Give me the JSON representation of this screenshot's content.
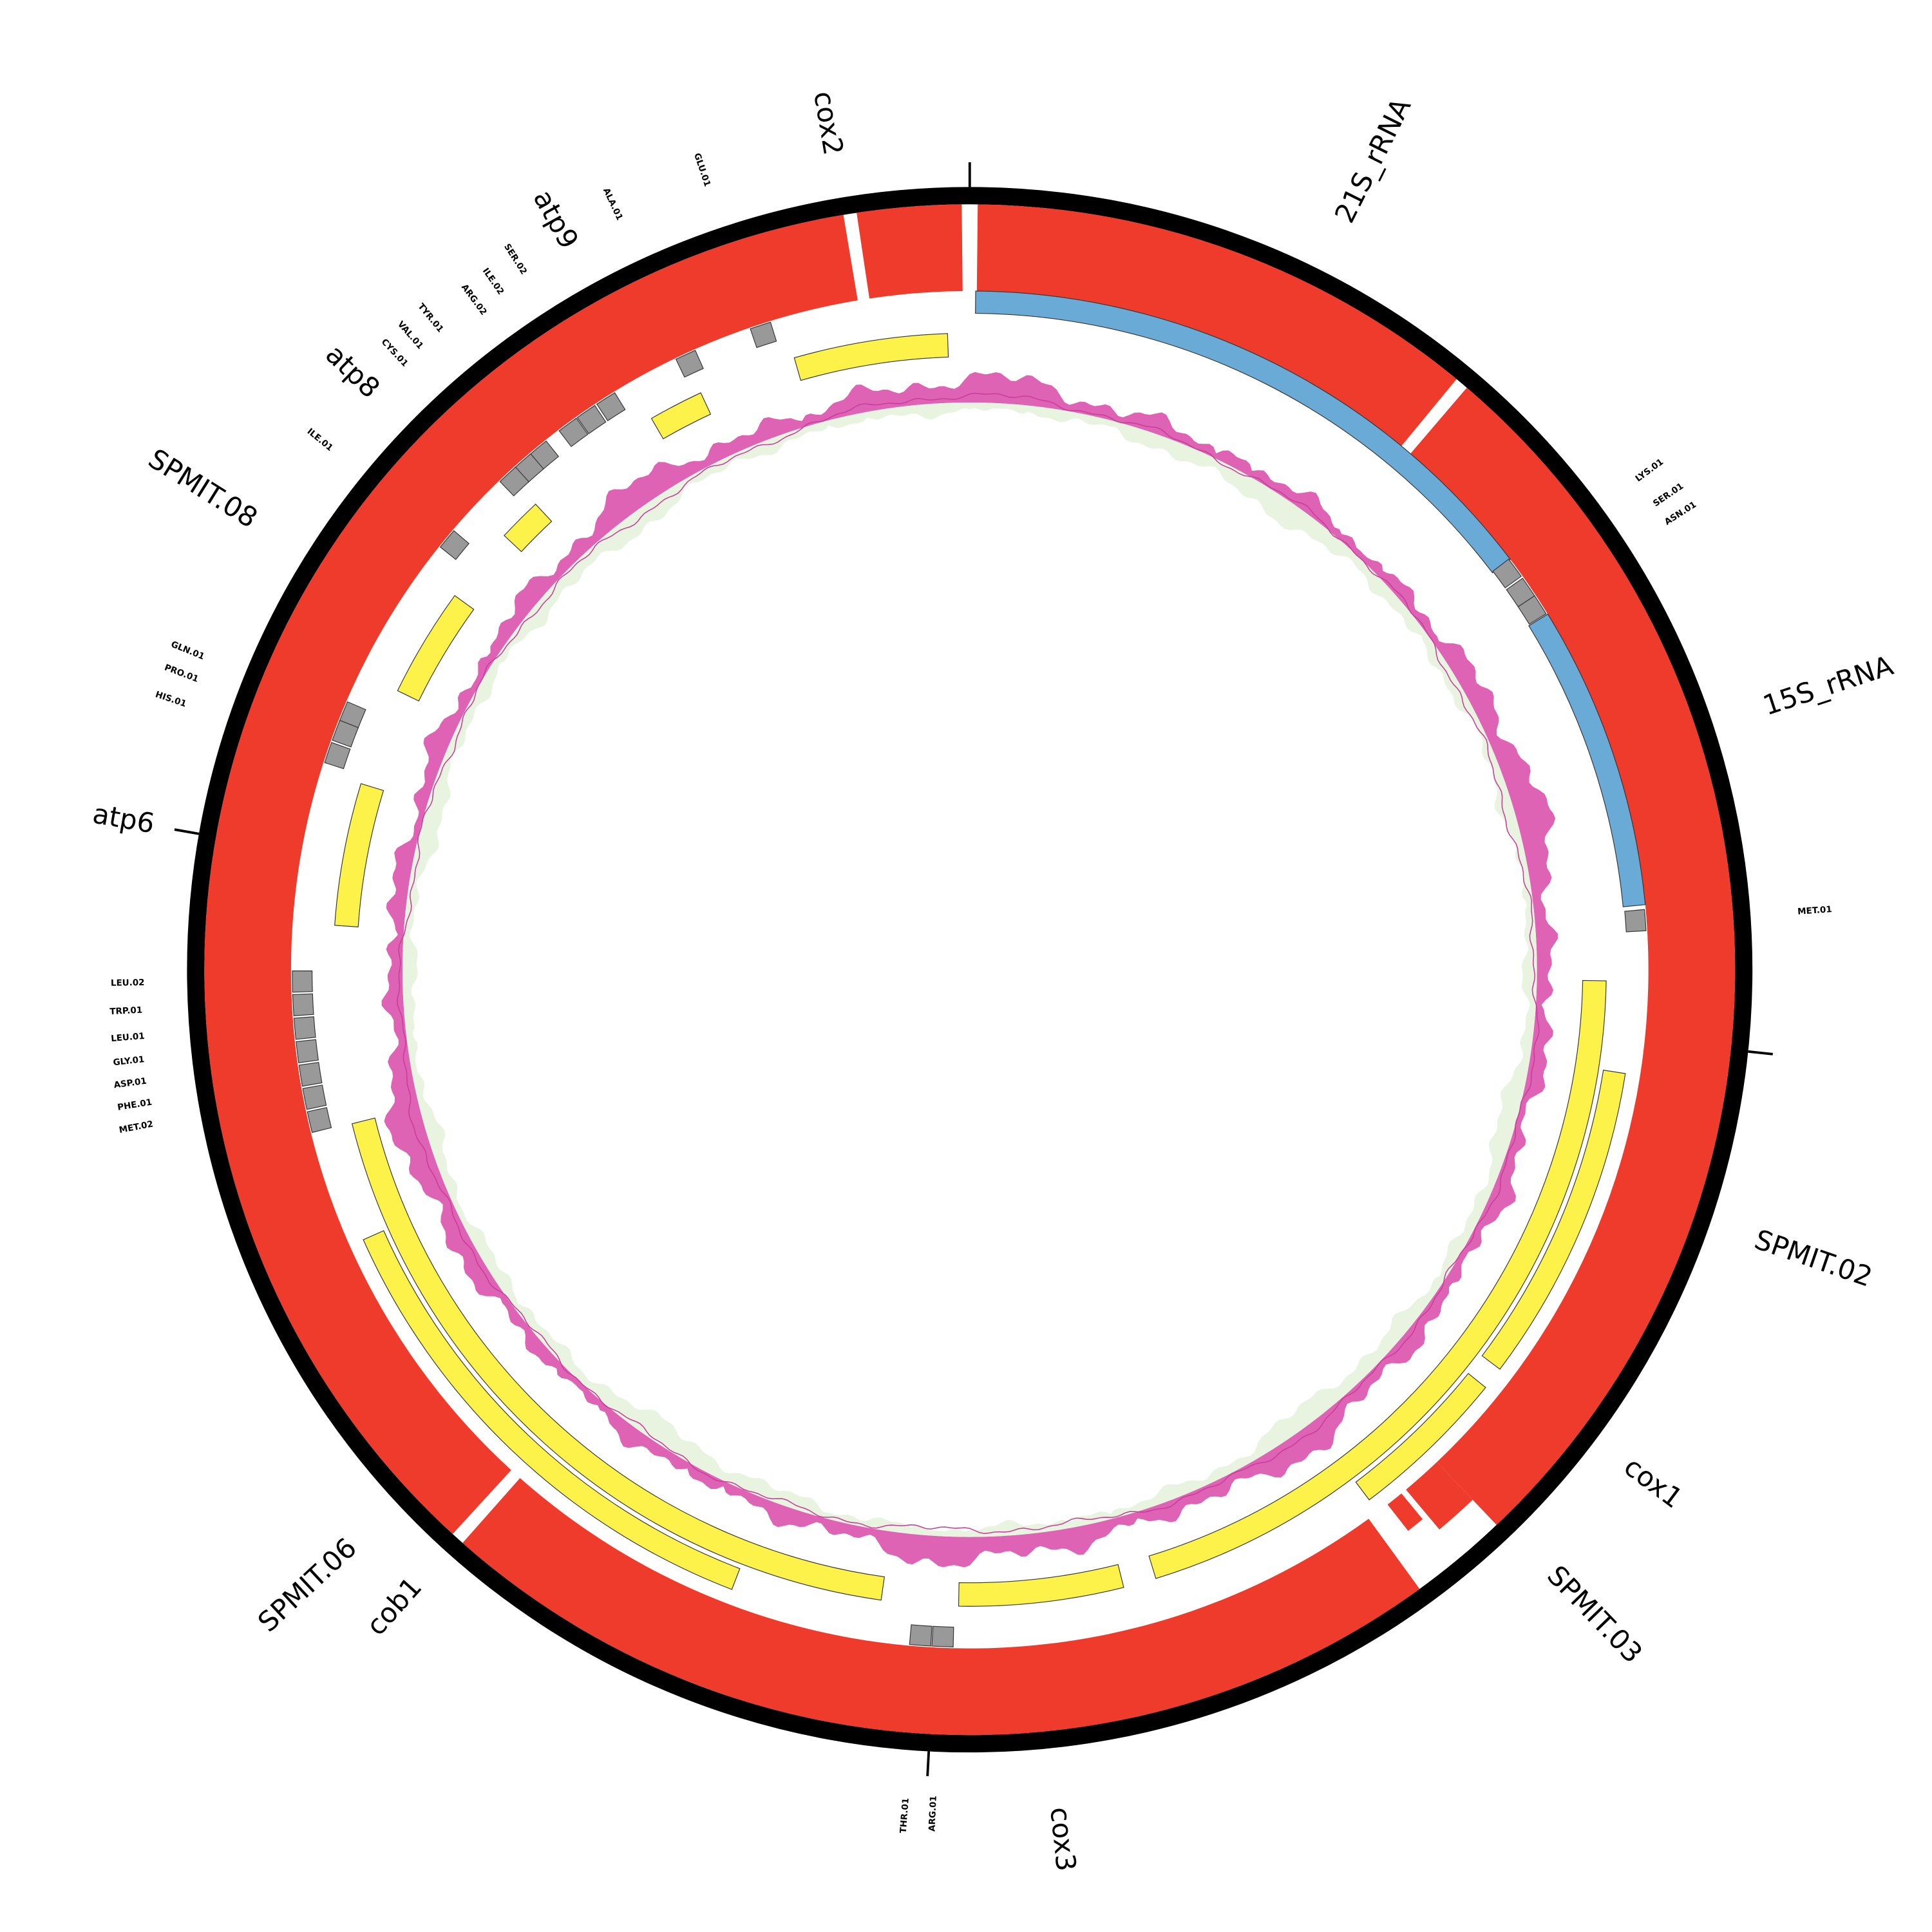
{
  "genes": [
    {
      "label": "21S_rRNA"
    },
    {
      "label": "15S_rRNA"
    },
    {
      "label": "SPMIT.02"
    },
    {
      "label": "cox1"
    },
    {
      "label": "SPMIT.03"
    },
    {
      "label": "cox3"
    },
    {
      "label": "cob1"
    },
    {
      "label": "SPMIT.06"
    },
    {
      "label": "atp6"
    },
    {
      "label": "SPMIT.08"
    },
    {
      "label": "atp8"
    },
    {
      "label": "atp9"
    },
    {
      "label": "cox2"
    }
  ],
  "trnas": [
    {
      "label": "GLU.01"
    },
    {
      "label": "ALA.01"
    },
    {
      "label": "SER.02"
    },
    {
      "label": "ILE.02"
    },
    {
      "label": "ARG.02"
    },
    {
      "label": "TYR.01"
    },
    {
      "label": "VAL.01"
    },
    {
      "label": "CYS.01"
    },
    {
      "label": "ILE.01"
    },
    {
      "label": "GLN.01"
    },
    {
      "label": "PRO.01"
    },
    {
      "label": "HIS.01"
    },
    {
      "label": "LEU.02"
    },
    {
      "label": "TRP.01"
    },
    {
      "label": "LEU.01"
    },
    {
      "label": "GLY.01"
    },
    {
      "label": "ASP.01"
    },
    {
      "label": "PHE.01"
    },
    {
      "label": "MET.02"
    },
    {
      "label": "THR.01"
    },
    {
      "label": "ARG.01"
    },
    {
      "label": "MET.01"
    },
    {
      "label": "LYS.01"
    },
    {
      "label": "SER.01"
    },
    {
      "label": "ASN.01"
    }
  ]
}
